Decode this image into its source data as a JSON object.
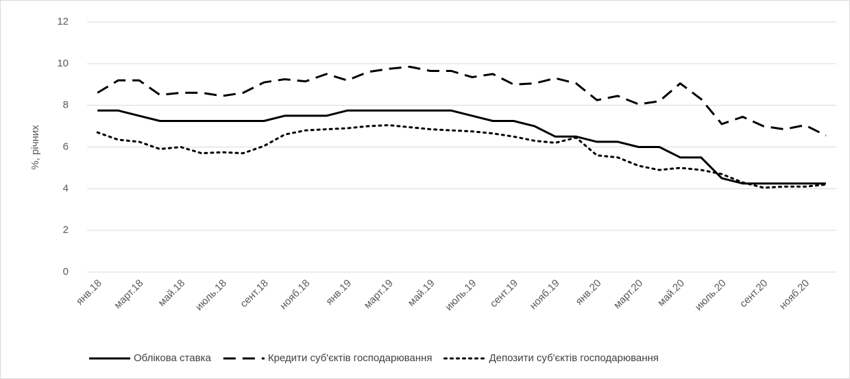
{
  "chart_data": {
    "type": "line",
    "ylabel": "%, річних",
    "categories": [
      "янв.18",
      null,
      "март.18",
      null,
      "май.18",
      null,
      "июль.18",
      null,
      "сент.18",
      null,
      "нояб.18",
      null,
      "янв.19",
      null,
      "март.19",
      null,
      "май.19",
      null,
      "июль.19",
      null,
      "сент.19",
      null,
      "нояб.19",
      null,
      "янв.20",
      null,
      "март.20",
      null,
      "май.20",
      null,
      "июль.20",
      null,
      "сент.20",
      null,
      "нояб.20",
      null
    ],
    "series": [
      {
        "name": "Облікова ставка",
        "color": "#000000",
        "style": "solid",
        "values": [
          7.75,
          7.75,
          7.5,
          7.25,
          7.25,
          7.25,
          7.25,
          7.25,
          7.25,
          7.5,
          7.5,
          7.5,
          7.75,
          7.75,
          7.75,
          7.75,
          7.75,
          7.75,
          7.5,
          7.25,
          7.25,
          7.0,
          6.5,
          6.5,
          6.25,
          6.25,
          6.0,
          6.0,
          5.5,
          5.5,
          4.5,
          4.25,
          4.25,
          4.25,
          4.25,
          4.25
        ]
      },
      {
        "name": "Кредити суб'єктів господарювання",
        "color": "#000000",
        "style": "dashed",
        "values": [
          8.6,
          9.2,
          9.2,
          8.5,
          8.6,
          8.6,
          8.45,
          8.6,
          9.1,
          9.25,
          9.15,
          9.5,
          9.2,
          9.6,
          9.75,
          9.85,
          9.65,
          9.65,
          9.35,
          9.5,
          9.0,
          9.05,
          9.3,
          9.05,
          8.25,
          8.45,
          8.05,
          8.2,
          9.05,
          8.3,
          7.1,
          7.45,
          7.0,
          6.85,
          7.05,
          6.55
        ]
      },
      {
        "name": "Депозити суб'єктів господарювання",
        "color": "#000000",
        "style": "dotted",
        "values": [
          6.7,
          6.35,
          6.25,
          5.9,
          6.0,
          5.7,
          5.75,
          5.7,
          6.05,
          6.6,
          6.8,
          6.85,
          6.9,
          7.0,
          7.05,
          6.95,
          6.85,
          6.8,
          6.75,
          6.65,
          6.5,
          6.3,
          6.2,
          6.45,
          5.6,
          5.5,
          5.1,
          4.9,
          5.0,
          4.9,
          4.7,
          4.3,
          4.05,
          4.1,
          4.1,
          4.2
        ]
      }
    ],
    "ylim": [
      0,
      12
    ],
    "yticks": [
      0,
      2,
      4,
      6,
      8,
      10,
      12
    ],
    "grid": true,
    "legend": "bottom"
  }
}
